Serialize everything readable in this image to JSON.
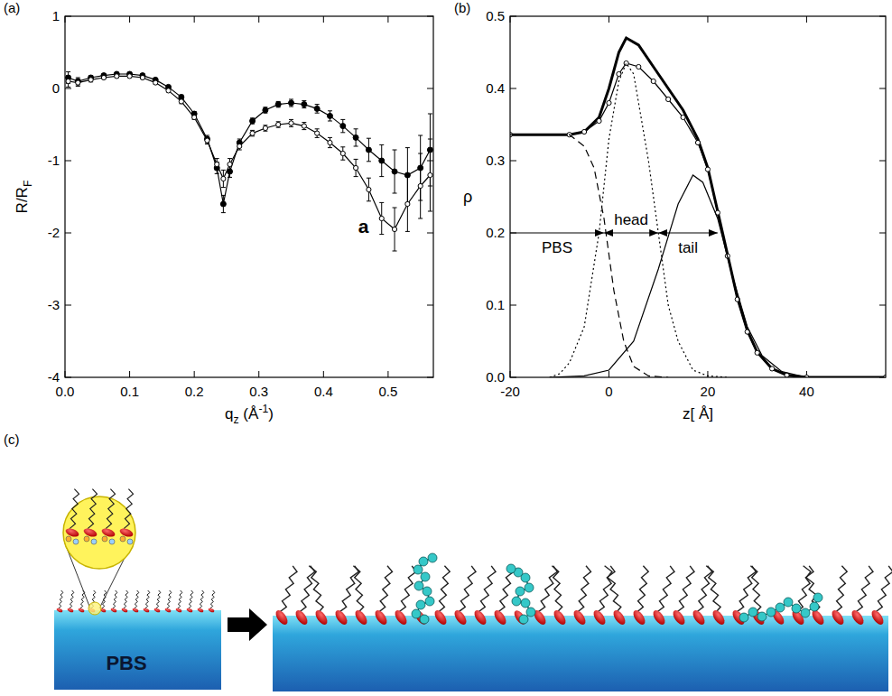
{
  "chart_data": [
    {
      "type": "scatter",
      "panel": "(a)",
      "x_label": [
        "q",
        {
          "sub": "z"
        },
        " (Å",
        {
          "sup": "-1"
        },
        ")"
      ],
      "y_label": [
        "R/R",
        {
          "sub": "F"
        }
      ],
      "xlim": [
        0,
        0.57
      ],
      "ylim": [
        -4,
        1
      ],
      "xticks": [
        {
          "value": 0,
          "label": "0.0"
        },
        0.1,
        0.2,
        0.3,
        0.4,
        0.5
      ],
      "yticks": [
        -4,
        -3,
        -2,
        -1,
        0,
        1
      ],
      "x": [
        0.005,
        0.02,
        0.04,
        0.06,
        0.08,
        0.1,
        0.12,
        0.14,
        0.16,
        0.18,
        0.2,
        0.22,
        0.235,
        0.245,
        0.255,
        0.27,
        0.29,
        0.31,
        0.33,
        0.35,
        0.37,
        0.39,
        0.41,
        0.43,
        0.45,
        0.47,
        0.49,
        0.51,
        0.53,
        0.55,
        0.565
      ],
      "series": [
        {
          "color": "#000000",
          "marker": "circle",
          "line_style": "solid",
          "values": [
            0.15,
            0.1,
            0.15,
            0.18,
            0.2,
            0.2,
            0.18,
            0.12,
            0.02,
            -0.12,
            -0.35,
            -0.7,
            -1.1,
            -1.6,
            -1.15,
            -0.75,
            -0.45,
            -0.3,
            -0.22,
            -0.2,
            -0.22,
            -0.28,
            -0.38,
            -0.52,
            -0.68,
            -0.85,
            -1.0,
            -1.15,
            -1.2,
            -1.1,
            -0.85
          ],
          "errors": [
            0.08,
            0.05,
            0.03,
            0.02,
            0.02,
            0.02,
            0.02,
            0.02,
            0.02,
            0.03,
            0.03,
            0.05,
            0.08,
            0.12,
            0.08,
            0.05,
            0.04,
            0.04,
            0.04,
            0.05,
            0.05,
            0.06,
            0.07,
            0.09,
            0.12,
            0.16,
            0.22,
            0.3,
            0.38,
            0.45,
            0.5
          ]
        },
        {
          "color": "#000000",
          "marker": "open-circle",
          "line_style": "solid",
          "values": [
            0.1,
            0.08,
            0.12,
            0.15,
            0.17,
            0.17,
            0.15,
            0.08,
            -0.03,
            -0.18,
            -0.4,
            -0.72,
            -1.05,
            -1.25,
            -1.05,
            -0.8,
            -0.62,
            -0.55,
            -0.5,
            -0.48,
            -0.52,
            -0.62,
            -0.75,
            -0.9,
            -1.1,
            -1.4,
            -1.8,
            -1.95,
            -1.6,
            -1.35,
            -1.2
          ],
          "errors": [
            0.08,
            0.05,
            0.03,
            0.02,
            0.02,
            0.02,
            0.02,
            0.02,
            0.02,
            0.03,
            0.03,
            0.05,
            0.08,
            0.12,
            0.08,
            0.05,
            0.04,
            0.04,
            0.04,
            0.05,
            0.05,
            0.06,
            0.07,
            0.09,
            0.12,
            0.16,
            0.22,
            0.3,
            0.38,
            0.45,
            0.5
          ]
        }
      ],
      "annotations": [
        {
          "text": "a",
          "x": 0.47,
          "y": -2.0
        }
      ]
    },
    {
      "type": "line",
      "panel": "(b)",
      "x_label": [
        "z[ Å]"
      ],
      "y_label": [
        "ρ"
      ],
      "xlim": [
        -20,
        56
      ],
      "ylim": [
        0,
        0.5
      ],
      "xticks": [
        -20,
        0,
        20,
        40
      ],
      "yticks": [
        {
          "value": 0,
          "label": "0.0"
        },
        0.1,
        0.2,
        0.3,
        0.4,
        0.5
      ],
      "series": [
        {
          "color": "#000000",
          "line_style": "solid",
          "x": [
            -20,
            -8,
            -5,
            -2,
            0,
            2,
            3.5,
            6,
            9,
            12,
            15,
            18,
            20,
            22,
            24,
            26,
            28,
            30,
            33,
            36,
            40,
            56
          ],
          "values": [
            0.336,
            0.336,
            0.34,
            0.36,
            0.4,
            0.45,
            0.47,
            0.46,
            0.43,
            0.4,
            0.37,
            0.33,
            0.29,
            0.23,
            0.17,
            0.11,
            0.065,
            0.035,
            0.012,
            0.003,
            0,
            0
          ]
        },
        {
          "color": "#000000",
          "line_style": "solid",
          "marker": "open-circle",
          "x": [
            -20,
            -8,
            -5,
            -2,
            0,
            2,
            3.5,
            6,
            9,
            12,
            15,
            18,
            20,
            22,
            24,
            26,
            28,
            30,
            33,
            36,
            40,
            56
          ],
          "values": [
            0.336,
            0.336,
            0.34,
            0.355,
            0.38,
            0.42,
            0.435,
            0.43,
            0.41,
            0.385,
            0.36,
            0.325,
            0.288,
            0.228,
            0.168,
            0.108,
            0.063,
            0.034,
            0.012,
            0.003,
            0,
            0
          ]
        },
        {
          "color": "#000000",
          "line_style": "dashed",
          "x": [
            -20,
            -8,
            -5,
            -3,
            -1,
            0,
            1,
            3,
            5,
            8,
            12
          ],
          "values": [
            0.336,
            0.336,
            0.32,
            0.29,
            0.22,
            0.17,
            0.12,
            0.05,
            0.015,
            0.002,
            0
          ]
        },
        {
          "color": "#000000",
          "line_style": "dotted",
          "x": [
            -12,
            -10,
            -8,
            -5,
            -2,
            0,
            2,
            3.5,
            5,
            8,
            10,
            12,
            14,
            17,
            20,
            24
          ],
          "values": [
            0,
            0.005,
            0.02,
            0.07,
            0.2,
            0.33,
            0.41,
            0.435,
            0.42,
            0.3,
            0.2,
            0.1,
            0.05,
            0.01,
            0.002,
            0
          ]
        },
        {
          "color": "#000000",
          "line_style": "solid",
          "x": [
            -12,
            -5,
            0,
            5,
            10,
            14,
            17,
            19,
            22,
            25,
            28,
            31,
            35,
            40
          ],
          "values": [
            0,
            0.002,
            0.01,
            0.05,
            0.15,
            0.24,
            0.28,
            0.27,
            0.22,
            0.14,
            0.07,
            0.03,
            0.008,
            0
          ]
        }
      ],
      "regions": [
        {
          "label": "PBS",
          "from": -20,
          "to": -1
        },
        {
          "label": "head",
          "from": -1,
          "to": 10
        },
        {
          "label": "tail",
          "from": 10,
          "to": 22
        }
      ],
      "regions_y": 0.2
    }
  ],
  "diagram": {
    "panel": "(c)",
    "subphase_label": "PBS"
  }
}
